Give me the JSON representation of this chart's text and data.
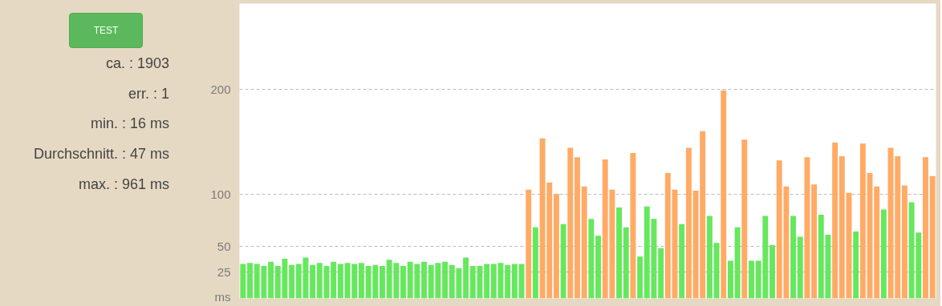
{
  "chart_data": {
    "type": "bar",
    "categories": [
      null,
      null,
      null,
      null,
      null,
      null,
      null,
      null,
      null,
      null,
      null,
      null,
      null,
      null,
      null,
      null,
      null,
      null,
      null,
      null,
      null,
      null,
      null,
      null,
      null,
      null,
      null,
      null,
      null,
      null,
      null,
      null,
      null,
      null,
      null,
      null,
      null,
      null,
      null,
      null,
      null,
      null,
      null,
      null,
      null,
      null,
      null,
      null,
      null,
      null,
      null,
      null,
      null,
      null,
      null,
      null,
      null,
      null,
      null,
      null,
      null,
      null,
      null,
      null,
      null,
      null,
      null,
      null,
      null,
      null,
      null,
      null,
      null,
      null,
      null,
      null,
      null,
      null,
      null,
      null,
      null,
      null,
      null,
      null,
      null,
      null,
      null,
      null,
      null,
      null,
      null,
      null,
      null,
      null,
      null,
      null,
      null,
      null,
      null,
      null
    ],
    "values": [
      33,
      34,
      33,
      31,
      35,
      31,
      38,
      32,
      33,
      39,
      32,
      34,
      31,
      35,
      33,
      34,
      33,
      34,
      31,
      32,
      31,
      37,
      34,
      31,
      35,
      33,
      35,
      32,
      34,
      35,
      32,
      29,
      39,
      31,
      31,
      33,
      33,
      34,
      32,
      33,
      33,
      104,
      68,
      153,
      111,
      100,
      71,
      144,
      135,
      107,
      76,
      60,
      133,
      104,
      87,
      68,
      139,
      40,
      88,
      76,
      48,
      120,
      104,
      71,
      144,
      103,
      160,
      79,
      53,
      199,
      36,
      68,
      152,
      36,
      36,
      79,
      51,
      132,
      107,
      79,
      59,
      135,
      109,
      80,
      61,
      149,
      136,
      101,
      64,
      148,
      120,
      107,
      85,
      144,
      136,
      108,
      92,
      63,
      135,
      117
    ],
    "colors": [
      "#66e85e",
      "#66e85e",
      "#66e85e",
      "#66e85e",
      "#66e85e",
      "#66e85e",
      "#66e85e",
      "#66e85e",
      "#66e85e",
      "#66e85e",
      "#66e85e",
      "#66e85e",
      "#66e85e",
      "#66e85e",
      "#66e85e",
      "#66e85e",
      "#66e85e",
      "#66e85e",
      "#66e85e",
      "#66e85e",
      "#66e85e",
      "#66e85e",
      "#66e85e",
      "#66e85e",
      "#66e85e",
      "#66e85e",
      "#66e85e",
      "#66e85e",
      "#66e85e",
      "#66e85e",
      "#66e85e",
      "#66e85e",
      "#66e85e",
      "#66e85e",
      "#66e85e",
      "#66e85e",
      "#66e85e",
      "#66e85e",
      "#66e85e",
      "#66e85e",
      "#66e85e",
      "#ffab66",
      "#66e85e",
      "#ffab66",
      "#ffab66",
      "#ffab66",
      "#66e85e",
      "#ffab66",
      "#ffab66",
      "#ffab66",
      "#66e85e",
      "#66e85e",
      "#ffab66",
      "#ffab66",
      "#66e85e",
      "#66e85e",
      "#ffab66",
      "#66e85e",
      "#66e85e",
      "#66e85e",
      "#66e85e",
      "#ffab66",
      "#ffab66",
      "#66e85e",
      "#ffab66",
      "#ffab66",
      "#ffab66",
      "#66e85e",
      "#66e85e",
      "#ffab66",
      "#66e85e",
      "#66e85e",
      "#ffab66",
      "#66e85e",
      "#66e85e",
      "#66e85e",
      "#66e85e",
      "#ffab66",
      "#ffab66",
      "#66e85e",
      "#66e85e",
      "#ffab66",
      "#ffab66",
      "#66e85e",
      "#66e85e",
      "#ffab66",
      "#ffab66",
      "#ffab66",
      "#66e85e",
      "#ffab66",
      "#ffab66",
      "#ffab66",
      "#66e85e",
      "#ffab66",
      "#ffab66",
      "#ffab66",
      "#66e85e",
      "#66e85e",
      "#ffab66",
      "#ffab66"
    ],
    "ylim": [
      0,
      282
    ],
    "yticks": [
      {
        "value": 0,
        "label": "ms"
      },
      25,
      50,
      100,
      200
    ],
    "grid": "y",
    "annotations": [
      "TEST",
      "ca. : 1903",
      "err. : 1",
      "min. : 16 ms",
      "Durchschnitt. : 47 ms",
      "max. : 961 ms"
    ]
  }
}
